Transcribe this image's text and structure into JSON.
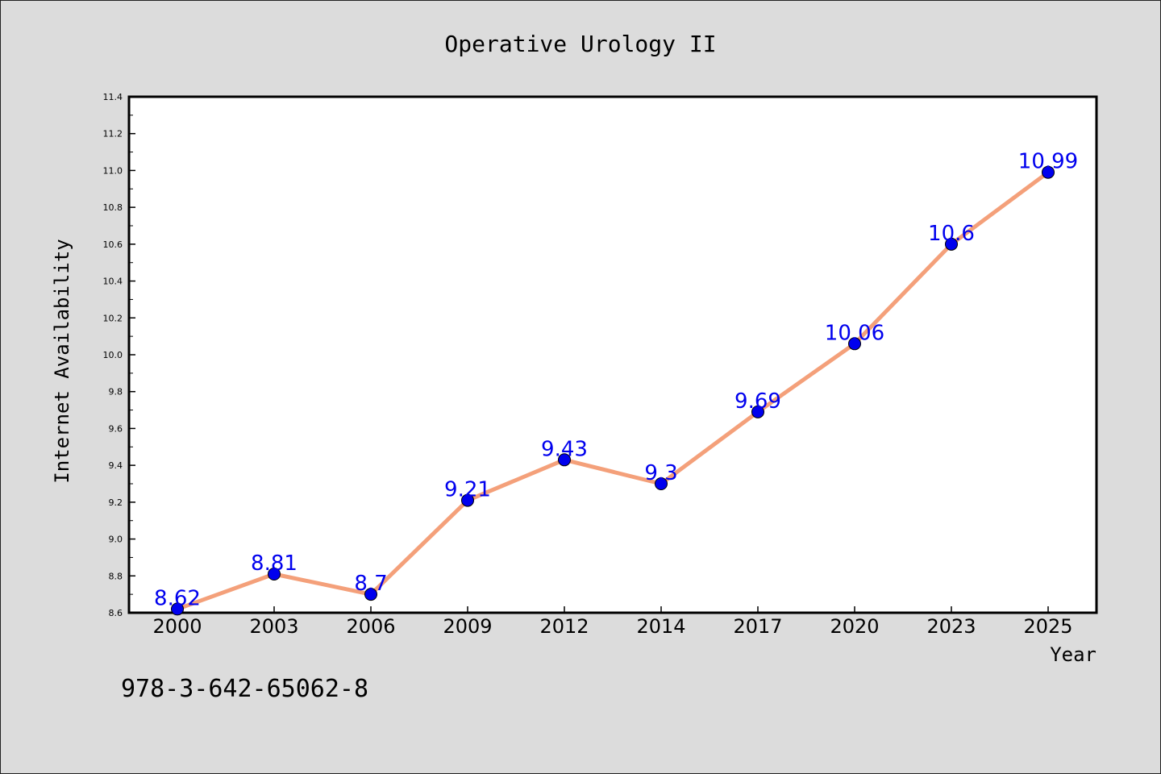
{
  "chart_data": {
    "type": "line",
    "title": "Operative Urology II",
    "xlabel": "Year",
    "ylabel": "Internet Availability",
    "categories": [
      "2000",
      "2003",
      "2006",
      "2009",
      "2012",
      "2014",
      "2017",
      "2020",
      "2023",
      "2025"
    ],
    "series": [
      {
        "values": [
          8.62,
          8.81,
          8.7,
          9.21,
          9.43,
          9.3,
          9.69,
          10.06,
          10.6,
          10.99
        ],
        "data_labels": [
          "8.62",
          "8.81",
          "8.7",
          "9.21",
          "9.43",
          "9.3",
          "9.69",
          "10.06",
          "10.6",
          "10.99"
        ]
      }
    ],
    "ylim": [
      8.6,
      11.4
    ],
    "yticks": [
      "8.6",
      "8.8",
      "9.0",
      "9.2",
      "9.4",
      "9.6",
      "9.8",
      "10.0",
      "10.2",
      "10.4",
      "10.6",
      "10.8",
      "11.0",
      "11.2",
      "11.4"
    ],
    "grid": false,
    "line_color": "#f4a07a",
    "marker_color": "#0000ee",
    "label_color": "#0000ee"
  },
  "footnote": "978-3-642-65062-8"
}
